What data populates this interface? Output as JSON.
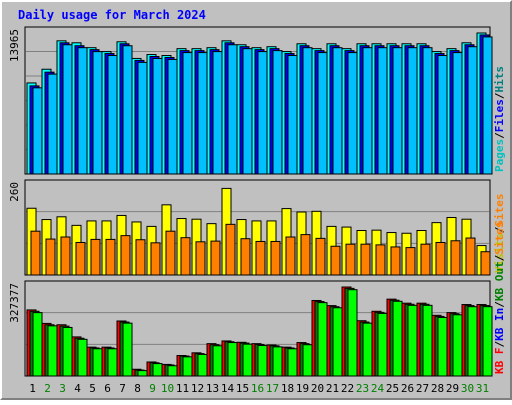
{
  "chart_data": [
    {
      "panel": "top",
      "type": "bar",
      "title": "Daily usage for March 2024",
      "y_max_label": "13965",
      "categories": [
        "1",
        "2",
        "3",
        "4",
        "5",
        "6",
        "7",
        "8",
        "9",
        "10",
        "11",
        "12",
        "13",
        "14",
        "15",
        "16",
        "17",
        "18",
        "19",
        "20",
        "21",
        "22",
        "23",
        "24",
        "25",
        "26",
        "27",
        "28",
        "29",
        "30",
        "31"
      ],
      "weekend_days": [
        "2",
        "3",
        "9",
        "10",
        "16",
        "17",
        "23",
        "24",
        "30",
        "31"
      ],
      "ylim": [
        0,
        14400
      ],
      "series": [
        {
          "name": "Hits",
          "color": "#00ffff",
          "values": [
            9300,
            10700,
            13600,
            13400,
            12900,
            12500,
            13500,
            11800,
            12200,
            12100,
            12800,
            12800,
            12900,
            13600,
            13200,
            12900,
            13000,
            12500,
            13300,
            12800,
            13300,
            12800,
            13300,
            13300,
            13300,
            13300,
            13300,
            12500,
            12800,
            13400,
            14400
          ]
        },
        {
          "name": "Files",
          "color": "#0000ff",
          "values": [
            9000,
            10400,
            13400,
            13100,
            12700,
            12300,
            13300,
            11600,
            12000,
            11900,
            12600,
            12600,
            12700,
            13400,
            13000,
            12700,
            12800,
            12300,
            13100,
            12600,
            13100,
            12600,
            13100,
            13100,
            13100,
            13100,
            13100,
            12300,
            12600,
            13200,
            14200
          ]
        },
        {
          "name": "Pages",
          "color": "#00c0ff",
          "values": [
            8800,
            10200,
            13200,
            12900,
            12500,
            12100,
            13100,
            11400,
            11800,
            11700,
            12400,
            12400,
            12500,
            13200,
            12800,
            12500,
            12600,
            12100,
            12900,
            12400,
            12900,
            12400,
            12900,
            12900,
            12900,
            12900,
            12900,
            12100,
            12400,
            13000,
            14000
          ]
        }
      ],
      "legend": [
        "Pages",
        "/",
        "Files",
        "/",
        "Hits"
      ],
      "legend_colors": [
        "#00c0c0",
        "#000000",
        "#0000ff",
        "#000000",
        "#008080"
      ]
    },
    {
      "panel": "middle",
      "type": "bar",
      "y_max_label": "260",
      "ylim": [
        0,
        260
      ],
      "series": [
        {
          "name": "Visits",
          "color": "#ffff00",
          "values": [
            195,
            162,
            170,
            145,
            158,
            158,
            174,
            155,
            142,
            205,
            165,
            163,
            150,
            253,
            162,
            158,
            158,
            194,
            184,
            186,
            142,
            140,
            130,
            131,
            124,
            122,
            130,
            153,
            168,
            163,
            86
          ]
        },
        {
          "name": "Sites",
          "color": "#ff8000",
          "values": [
            128,
            105,
            111,
            95,
            104,
            104,
            115,
            103,
            94,
            128,
            109,
            97,
            99,
            148,
            106,
            98,
            98,
            111,
            118,
            107,
            84,
            90,
            90,
            88,
            82,
            80,
            90,
            95,
            100,
            108,
            68
          ]
        }
      ],
      "legend": [
        "Visits",
        "/",
        "Sites"
      ],
      "legend_colors": [
        "#c0c000",
        "#000000",
        "#ff8000"
      ]
    },
    {
      "panel": "bottom",
      "type": "bar",
      "y_max_label": "327377",
      "ylim": [
        0,
        330000
      ],
      "series": [
        {
          "name": "KB F",
          "color": "#ff0000",
          "values": [
            245000,
            195000,
            190000,
            145000,
            107000,
            107000,
            204000,
            25000,
            52000,
            43000,
            76000,
            86000,
            120000,
            130000,
            125000,
            120000,
            115000,
            107000,
            124000,
            280000,
            261000,
            330000,
            205000,
            240000,
            285000,
            270000,
            270000,
            225000,
            235000,
            265000,
            265000
          ]
        },
        {
          "name": "KB In",
          "color": "#008000",
          "values": [
            240000,
            190000,
            185000,
            140000,
            104000,
            104000,
            200000,
            22000,
            49000,
            41000,
            74000,
            83000,
            116000,
            127000,
            122000,
            117000,
            112000,
            104000,
            120000,
            276000,
            257000,
            325000,
            200000,
            236000,
            281000,
            266000,
            266000,
            221000,
            231000,
            261000,
            261000
          ]
        },
        {
          "name": "KB Out",
          "color": "#00ff00",
          "values": [
            235000,
            186000,
            180000,
            136000,
            101000,
            101000,
            196000,
            20000,
            46000,
            38000,
            71000,
            80000,
            112000,
            124000,
            118000,
            113000,
            108000,
            101000,
            116000,
            272000,
            253000,
            320000,
            196000,
            232000,
            277000,
            262000,
            262000,
            217000,
            227000,
            257000,
            257000
          ]
        }
      ],
      "legend": [
        "KB F",
        "/",
        "KB In",
        "/",
        "KB Out",
        "/",
        "Sites"
      ],
      "legend_colors": [
        "#ff0000",
        "#000000",
        "#0000ff",
        "#000000",
        "#008000",
        "#000000",
        "#ff8000"
      ]
    }
  ],
  "colors": {
    "panel_bg": "#c0c0c0",
    "grid": "#808080",
    "weekday_label": "#000000",
    "weekend_label": "#008000",
    "title": "#0000ff"
  }
}
